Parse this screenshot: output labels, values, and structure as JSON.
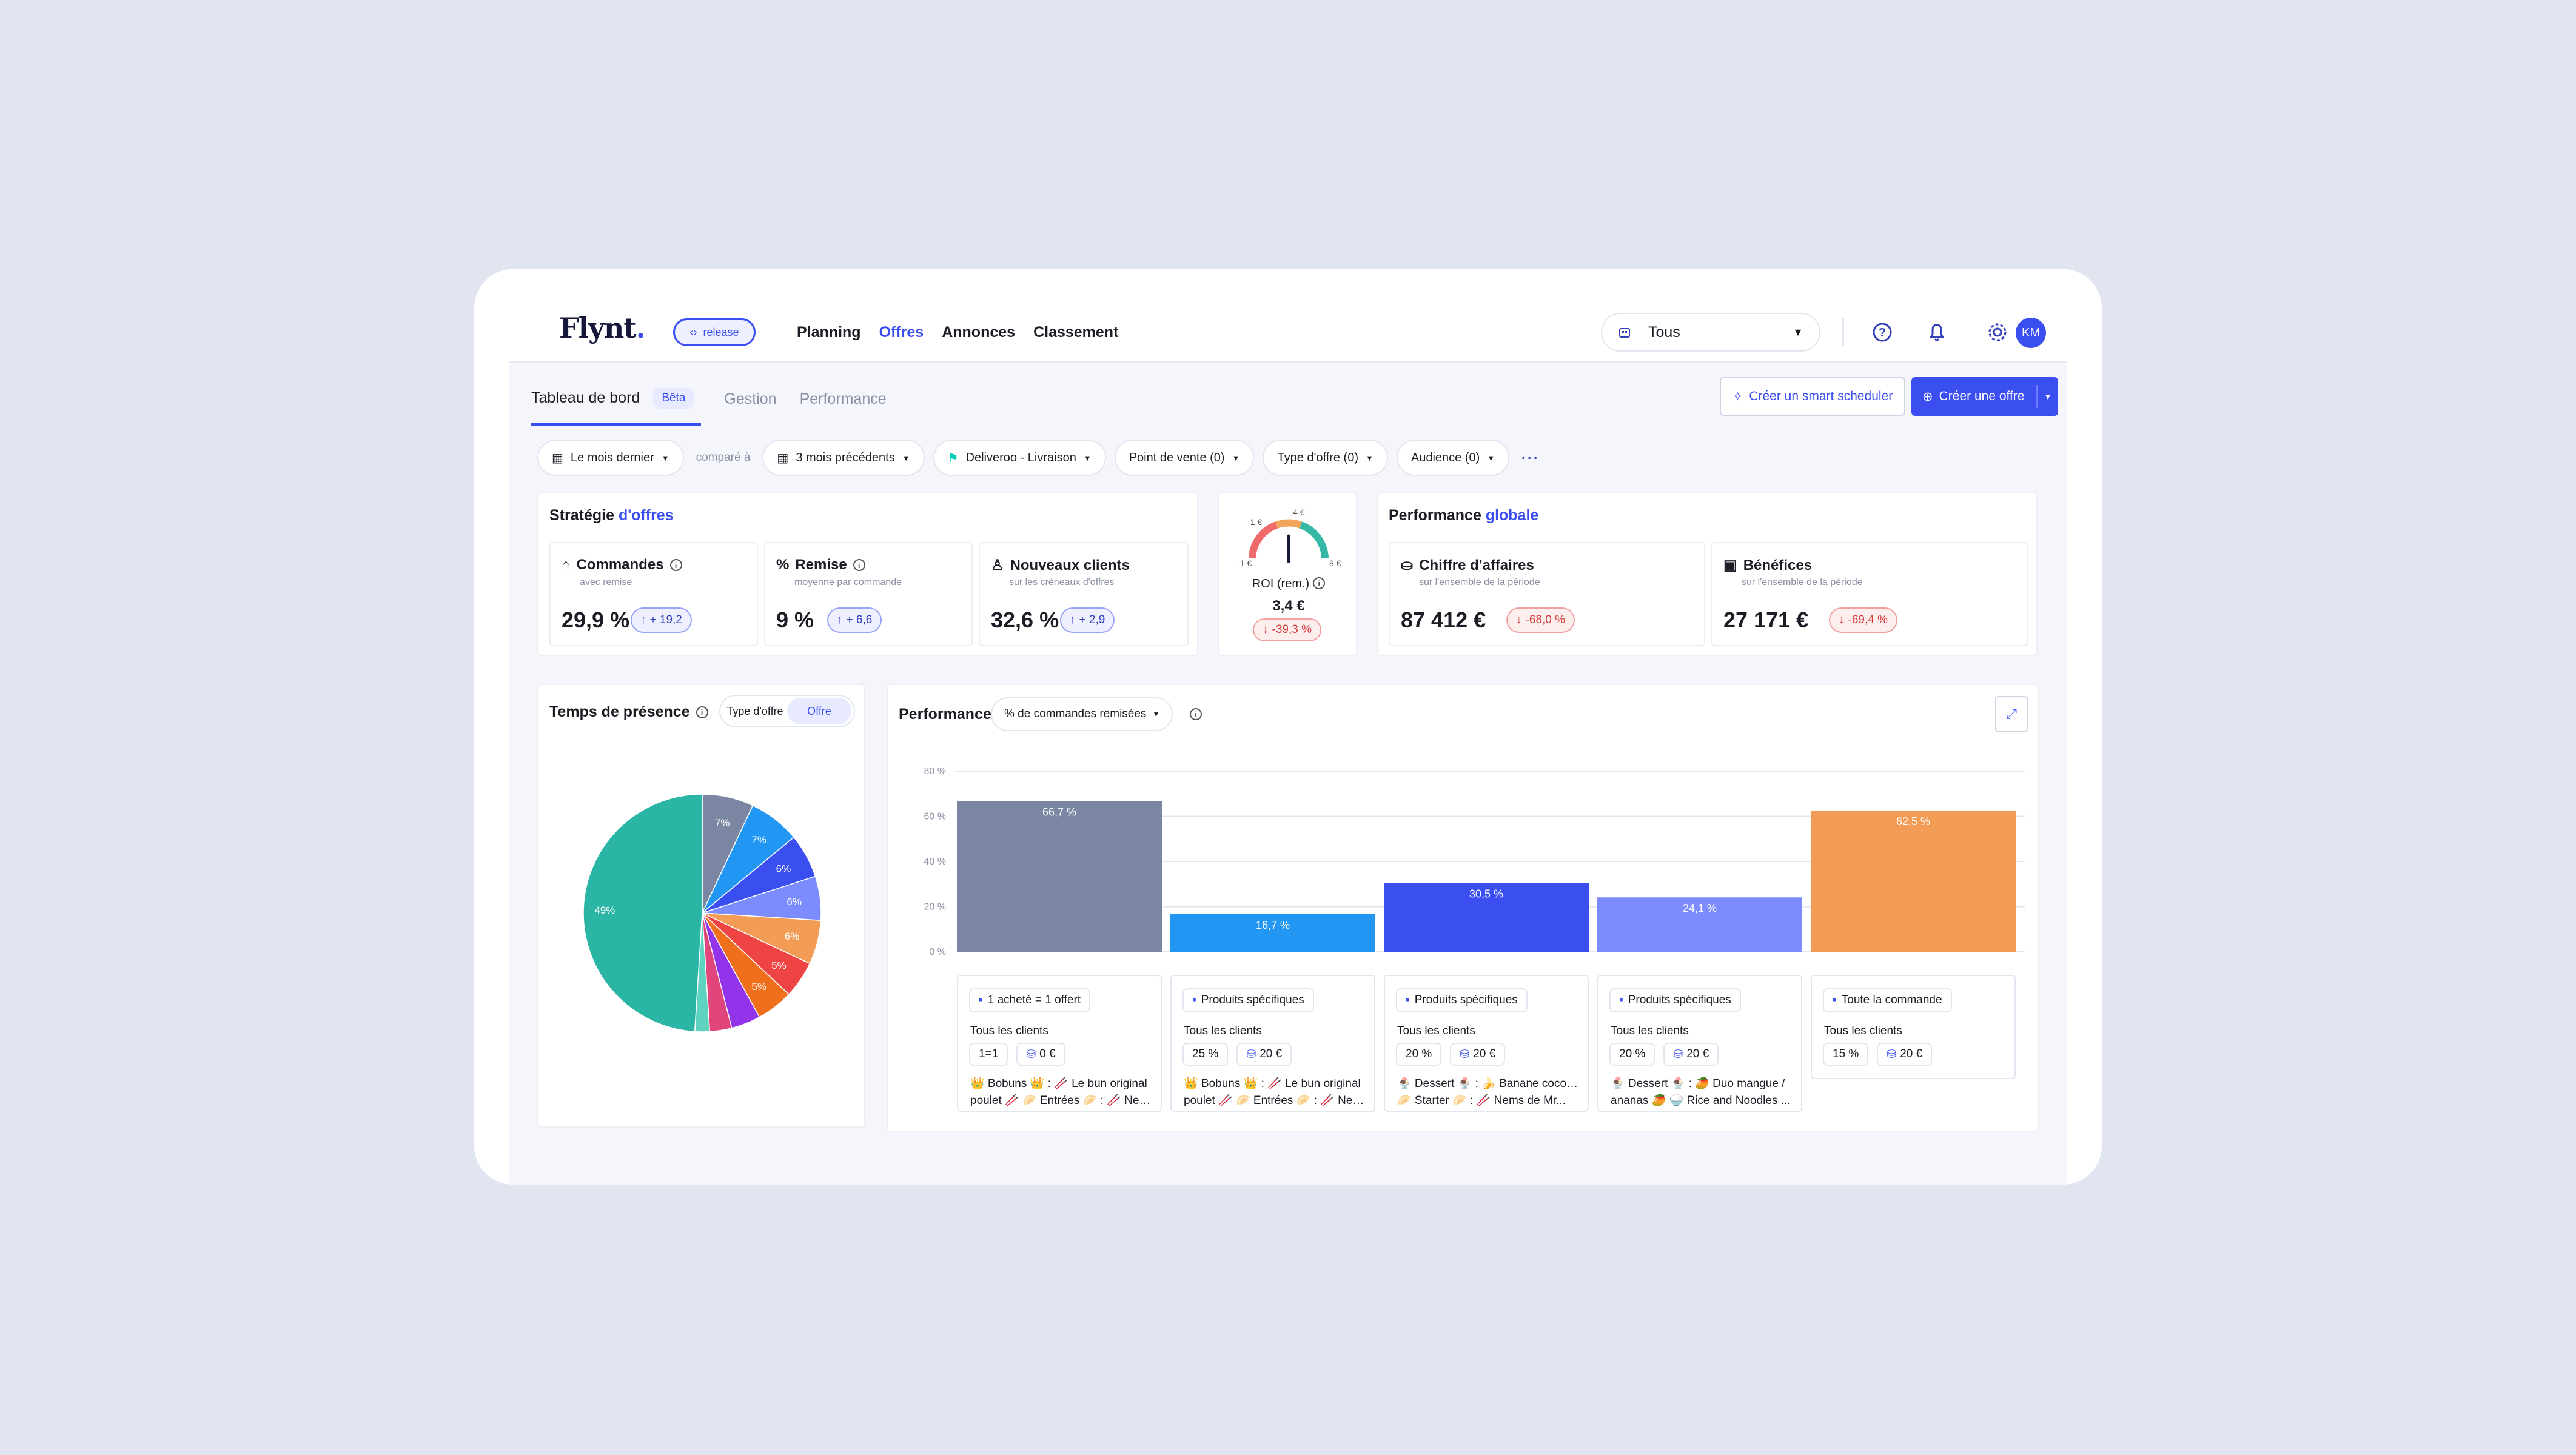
{
  "brand": {
    "logo": "Flynt",
    "branch": "release"
  },
  "nav": [
    "Planning",
    "Offres",
    "Annonces",
    "Classement"
  ],
  "nav_active": 1,
  "store_select": "Tous",
  "user_initials": "KM",
  "tabs": [
    "Tableau de bord",
    "Gestion",
    "Performance"
  ],
  "beta_label": "Bêta",
  "actions": {
    "smart": "Créer un smart scheduler",
    "create": "Créer une offre"
  },
  "filters": {
    "period": "Le mois dernier",
    "compare_label": "comparé à",
    "compare": "3 mois précédents",
    "platform": "Deliveroo - Livraison",
    "pos": "Point de vente (0)",
    "offer_type": "Type d'offre (0)",
    "audience": "Audience (0)"
  },
  "strategy": {
    "title_a": "Stratégie",
    "title_b": "d'offres",
    "kpis": [
      {
        "label": "Commandes",
        "sub": "avec remise",
        "value": "29,9 %",
        "delta": "+ 19,2"
      },
      {
        "label": "Remise",
        "sub": "moyenne par commande",
        "value": "9 %",
        "delta": "+ 6,6"
      },
      {
        "label": "Nouveaux clients",
        "sub": "sur les créneaux d'offres",
        "value": "32,6 %",
        "delta": "+ 2,9"
      }
    ]
  },
  "roi": {
    "label": "ROI (rem.)",
    "value": "3,4 €",
    "delta": "-39,3 %",
    "gauge_labels": [
      "-1 €",
      "1 €",
      "4 €",
      "8 €"
    ]
  },
  "global": {
    "title_a": "Performance",
    "title_b": "globale",
    "kpis": [
      {
        "label": "Chiffre d'affaires",
        "sub": "sur l'ensemble de la période",
        "value": "87 412 €",
        "delta": "-68,0 %"
      },
      {
        "label": "Bénéfices",
        "sub": "sur l'ensemble de la période",
        "value": "27 171 €",
        "delta": "-69,4 %"
      }
    ]
  },
  "presence": {
    "title": "Temps de présence",
    "toggle": [
      "Type d'offre",
      "Offre"
    ]
  },
  "performance": {
    "title": "Performance",
    "metric": "% de commandes remisées"
  },
  "offers": [
    {
      "type": "1 acheté = 1 offert",
      "audience": "Tous les clients",
      "discount": "1=1",
      "min": "0 €",
      "products": [
        "👑 Bobuns 👑 : 🥢 Le bun original",
        "poulet 🥢 🥟 Entrées 🥟 : 🥢 Nem..."
      ]
    },
    {
      "type": "Produits spécifiques",
      "audience": "Tous les clients",
      "discount": "25 %",
      "min": "20 €",
      "products": [
        "👑 Bobuns 👑 : 🥢 Le bun original",
        "poulet 🥢 🥟 Entrées 🥟 : 🥢 Nem..."
      ]
    },
    {
      "type": "Produits spécifiques",
      "audience": "Tous les clients",
      "discount": "20 %",
      "min": "20 €",
      "products": [
        "🍨 Dessert 🍨 : 🍌 Banane coco 🍌",
        "🥟 Starter 🥟 : 🥢 Nems de Mr..."
      ]
    },
    {
      "type": "Produits spécifiques",
      "audience": "Tous les clients",
      "discount": "20 %",
      "min": "20 €",
      "products": [
        "🍨 Dessert 🍨 : 🥭 Duo mangue /",
        "ananas 🥭 🍚 Rice and Noodles ..."
      ]
    },
    {
      "type": "Toute la commande",
      "audience": "Tous les clients",
      "discount": "15 %",
      "min": "20 €",
      "products": []
    }
  ],
  "chart_data": [
    {
      "type": "pie",
      "title": "Temps de présence",
      "slices": [
        {
          "value": 49,
          "label": "49%",
          "color": "#2bb5a5"
        },
        {
          "value": 7,
          "label": "7%",
          "color": "#7b86a3"
        },
        {
          "value": 7,
          "label": "7%",
          "color": "#2196f3"
        },
        {
          "value": 6,
          "label": "6%",
          "color": "#3b4ef0"
        },
        {
          "value": 6,
          "label": "6%",
          "color": "#7c8cff"
        },
        {
          "value": 6,
          "label": "6%",
          "color": "#f39c55"
        },
        {
          "value": 5,
          "label": "5%",
          "color": "#ef4444"
        },
        {
          "value": 5,
          "label": "5%",
          "color": "#f06f1c"
        },
        {
          "value": 4,
          "label": "",
          "color": "#9333ea"
        },
        {
          "value": 3,
          "label": "",
          "color": "#e0457b"
        },
        {
          "value": 2,
          "label": "",
          "color": "#5ed3c0"
        }
      ]
    },
    {
      "type": "bar",
      "title": "Performance",
      "ylabel": "% de commandes remisées",
      "categories": [
        "1 acheté = 1 offert",
        "Produits spécifiques",
        "Produits spécifiques",
        "Produits spécifiques",
        "Toute la commande"
      ],
      "values": [
        66.7,
        16.7,
        30.5,
        24.1,
        62.5
      ],
      "value_labels": [
        "66,7 %",
        "16,7 %",
        "30,5 %",
        "24,1 %",
        "62,5 %"
      ],
      "colors": [
        "#7b86a3",
        "#2196f3",
        "#3b4ef0",
        "#7c8cff",
        "#f39c55"
      ],
      "ylim": [
        0,
        80
      ],
      "yticks": [
        "0 %",
        "20 %",
        "40 %",
        "60 %",
        "80 %"
      ],
      "grid": true
    }
  ]
}
